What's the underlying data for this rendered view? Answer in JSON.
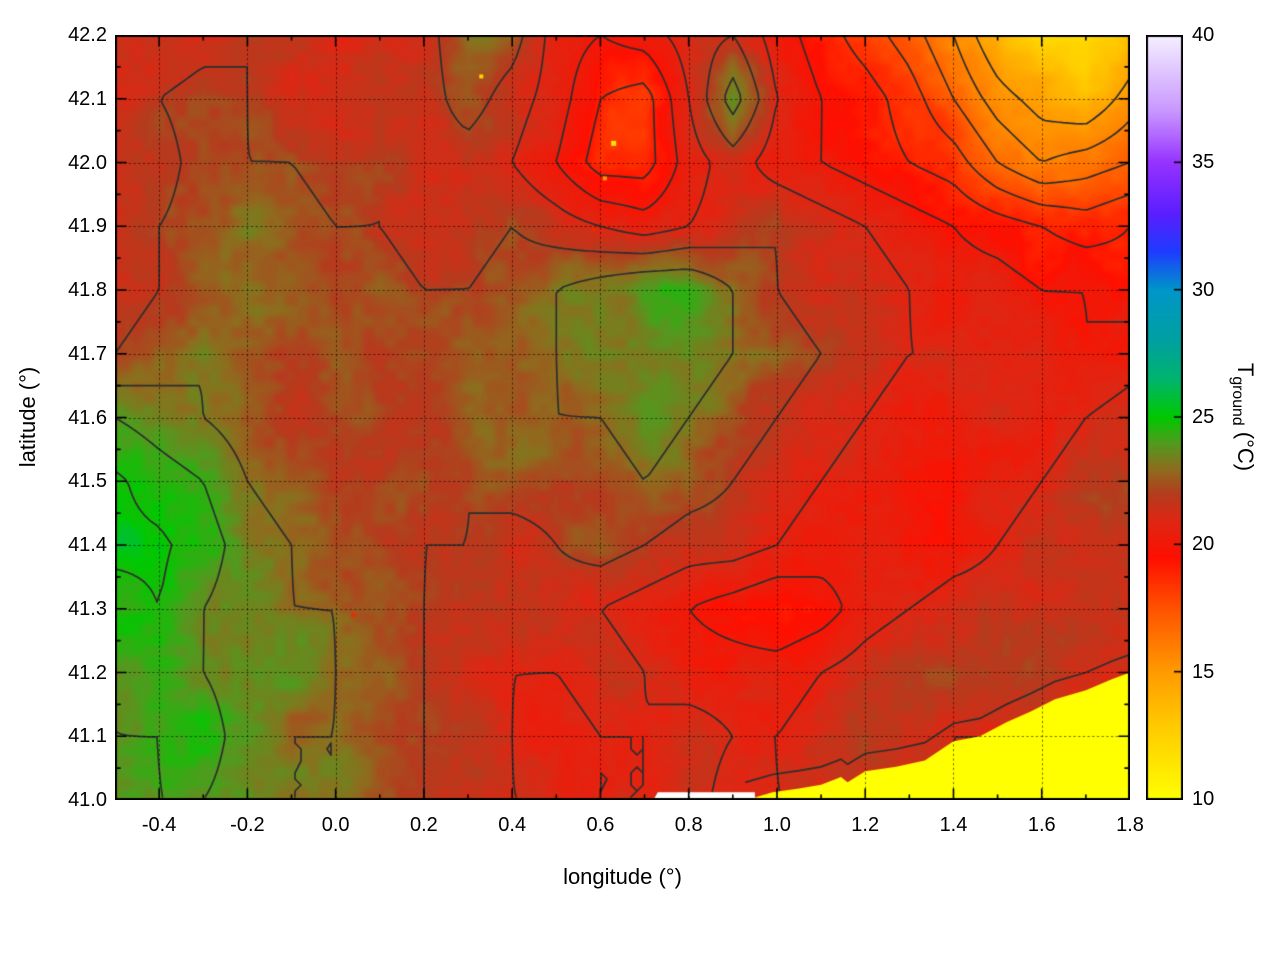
{
  "figure": {
    "xlabel": "longitude (°)",
    "ylabel": "latitude (°)",
    "cb_t": "T",
    "cb_sub": "ground",
    "cb_unit": " (°C)"
  },
  "chart_data": {
    "type": "heatmap",
    "title": "",
    "xlabel": "longitude (°)",
    "ylabel": "latitude (°)",
    "colorbar_label": "T_ground (°C)",
    "xlim": [
      -0.5,
      1.8
    ],
    "ylim": [
      41.0,
      42.2
    ],
    "zlim": [
      10,
      40
    ],
    "grid": true,
    "legend_position": "right-colorbar",
    "x_tick_values": [
      -0.4,
      -0.2,
      0.0,
      0.2,
      0.4,
      0.6,
      0.8,
      1.0,
      1.2,
      1.4,
      1.6,
      1.8
    ],
    "x_tick_labels": [
      "-0.4",
      "-0.2",
      "0.0",
      "0.2",
      "0.4",
      "0.6",
      "0.8",
      "1.0",
      "1.2",
      "1.4",
      "1.6",
      "1.8"
    ],
    "x_minor_step": 0.1,
    "y_tick_values": [
      41.0,
      41.1,
      41.2,
      41.3,
      41.4,
      41.5,
      41.6,
      41.7,
      41.8,
      41.9,
      42.0,
      42.1,
      42.2
    ],
    "y_tick_labels": [
      "41.0",
      "41.1",
      "41.2",
      "41.3",
      "41.4",
      "41.5",
      "41.6",
      "41.7",
      "41.8",
      "41.9",
      "42.0",
      "42.1",
      "42.2"
    ],
    "y_minor_step": 0.05,
    "colorbar": {
      "tick_values": [
        10,
        15,
        20,
        25,
        30,
        35,
        40
      ],
      "tick_labels": [
        "10",
        "15",
        "20",
        "25",
        "30",
        "35",
        "40"
      ],
      "stops": [
        [
          10,
          "#ffff00"
        ],
        [
          13,
          "#ffc800"
        ],
        [
          15,
          "#ff9b00"
        ],
        [
          17.5,
          "#ff5200"
        ],
        [
          19.5,
          "#ff0f00"
        ],
        [
          21,
          "#dc2814"
        ],
        [
          22,
          "#b43c1e"
        ],
        [
          23,
          "#8c6e1e"
        ],
        [
          24,
          "#509b1e"
        ],
        [
          25,
          "#00c800"
        ],
        [
          26.5,
          "#00b46e"
        ],
        [
          28,
          "#00a0a0"
        ],
        [
          30,
          "#0096c8"
        ],
        [
          31.5,
          "#1e3cff"
        ],
        [
          33,
          "#5a1eff"
        ],
        [
          35,
          "#9632ff"
        ],
        [
          37,
          "#c896ff"
        ],
        [
          40,
          "#f5f0ff"
        ]
      ]
    },
    "contour_levels": [
      15,
      16,
      17,
      18,
      19,
      20,
      21,
      22,
      23,
      24,
      25
    ],
    "contour_color": "#2e2e2e",
    "lon": [
      -0.5,
      -0.4,
      -0.3,
      -0.2,
      -0.1,
      0.0,
      0.1,
      0.2,
      0.3,
      0.4,
      0.5,
      0.6,
      0.7,
      0.8,
      0.9,
      1.0,
      1.1,
      1.2,
      1.3,
      1.4,
      1.5,
      1.6,
      1.7,
      1.8
    ],
    "lat": [
      42.2,
      42.1,
      42.0,
      41.9,
      41.8,
      41.7,
      41.6,
      41.5,
      41.4,
      41.3,
      41.2,
      41.1,
      41.0
    ],
    "temperature": [
      [
        21.5,
        21.0,
        21.5,
        22.0,
        21.5,
        21.0,
        21.5,
        21.5,
        23.0,
        22.5,
        20.5,
        20.0,
        20.5,
        21.5,
        22.0,
        20.5,
        19.5,
        18.5,
        17.5,
        16.0,
        14.0,
        12.5,
        12.0,
        14.0
      ],
      [
        21.0,
        22.0,
        22.5,
        22.0,
        21.5,
        21.5,
        22.0,
        21.5,
        22.5,
        21.5,
        20.5,
        19.0,
        18.5,
        21.0,
        23.5,
        21.0,
        20.0,
        19.5,
        18.5,
        17.0,
        15.5,
        14.5,
        14.0,
        15.5
      ],
      [
        21.5,
        21.5,
        22.5,
        22.0,
        22.0,
        21.5,
        22.0,
        21.5,
        21.5,
        21.0,
        20.0,
        18.5,
        18.5,
        20.5,
        21.5,
        20.5,
        20.0,
        19.5,
        19.0,
        18.5,
        17.0,
        16.0,
        16.5,
        17.0
      ],
      [
        21.5,
        22.0,
        22.5,
        23.0,
        22.5,
        22.0,
        22.0,
        21.5,
        21.5,
        22.0,
        21.5,
        21.0,
        20.5,
        21.0,
        21.5,
        22.0,
        21.5,
        21.0,
        20.5,
        20.0,
        19.5,
        19.0,
        18.5,
        19.0
      ],
      [
        21.5,
        22.0,
        22.5,
        23.0,
        22.5,
        22.0,
        22.5,
        22.0,
        22.0,
        22.5,
        23.0,
        23.5,
        24.0,
        24.0,
        23.0,
        22.0,
        21.5,
        21.5,
        21.0,
        20.5,
        20.5,
        20.0,
        20.0,
        19.5
      ],
      [
        22.0,
        22.5,
        23.0,
        22.5,
        22.0,
        22.5,
        22.0,
        22.5,
        23.0,
        22.5,
        23.0,
        23.5,
        23.5,
        23.5,
        23.0,
        22.5,
        22.0,
        21.5,
        21.0,
        21.0,
        20.5,
        20.5,
        20.0,
        20.5
      ],
      [
        24.0,
        23.5,
        23.0,
        22.5,
        22.0,
        22.0,
        22.5,
        22.0,
        22.5,
        22.5,
        23.0,
        23.0,
        23.5,
        23.0,
        22.5,
        22.0,
        21.5,
        21.0,
        20.5,
        20.5,
        21.0,
        20.5,
        21.0,
        21.5
      ],
      [
        25.2,
        24.5,
        24.0,
        23.0,
        22.5,
        22.0,
        22.0,
        22.5,
        22.0,
        22.5,
        22.5,
        22.5,
        23.0,
        22.5,
        22.0,
        21.5,
        21.0,
        20.5,
        20.0,
        20.0,
        20.5,
        21.0,
        21.5,
        22.0
      ],
      [
        25.3,
        25.2,
        24.5,
        23.5,
        23.0,
        22.5,
        22.5,
        22.0,
        22.0,
        21.5,
        22.0,
        22.5,
        22.0,
        21.5,
        21.5,
        21.0,
        20.5,
        20.5,
        20.0,
        20.5,
        21.0,
        21.5,
        22.0,
        22.0
      ],
      [
        24.5,
        25.0,
        24.0,
        23.5,
        23.0,
        23.0,
        22.5,
        22.0,
        21.5,
        21.5,
        21.5,
        21.0,
        20.5,
        20.0,
        19.5,
        19.0,
        19.5,
        20.5,
        21.0,
        21.5,
        21.5,
        21.5,
        21.5,
        22.0
      ],
      [
        24.0,
        24.5,
        24.0,
        23.5,
        23.5,
        23.0,
        22.5,
        22.0,
        21.5,
        21.0,
        21.0,
        21.5,
        21.0,
        20.5,
        20.5,
        20.5,
        21.0,
        21.5,
        22.0,
        22.0,
        22.0,
        22.0,
        21.5,
        21.0
      ],
      [
        24.0,
        24.0,
        24.5,
        23.5,
        23.0,
        23.0,
        22.5,
        22.0,
        21.5,
        21.0,
        20.5,
        21.0,
        21.0,
        21.5,
        21.0,
        21.0,
        21.5,
        22.0,
        21.5,
        21.0,
        21.0,
        21.0,
        21.0,
        21.0
      ],
      [
        23.5,
        24.0,
        24.0,
        23.5,
        23.0,
        23.0,
        22.5,
        22.0,
        21.5,
        21.0,
        21.0,
        21.0,
        21.0,
        21.5,
        20.5,
        21.0,
        21.0,
        21.0,
        21.0,
        21.0,
        21.0,
        21.0,
        21.0,
        21.0
      ]
    ],
    "sea": {
      "color": "#ffff00",
      "boundary": [
        [
          0.93,
          41.0
        ],
        [
          0.99,
          41.012
        ],
        [
          1.05,
          41.018
        ],
        [
          1.1,
          41.024
        ],
        [
          1.145,
          41.036
        ],
        [
          1.16,
          41.028
        ],
        [
          1.2,
          41.045
        ],
        [
          1.27,
          41.052
        ],
        [
          1.335,
          41.062
        ],
        [
          1.4,
          41.092
        ],
        [
          1.46,
          41.1
        ],
        [
          1.52,
          41.122
        ],
        [
          1.575,
          41.139
        ],
        [
          1.63,
          41.158
        ],
        [
          1.7,
          41.172
        ],
        [
          1.76,
          41.19
        ],
        [
          1.8,
          41.2
        ]
      ],
      "coast_contour_offset": 0.028
    },
    "nodata_strip": {
      "color": "#ffffff",
      "polygon": [
        [
          0.72,
          41.0
        ],
        [
          0.95,
          41.0
        ],
        [
          0.95,
          41.012
        ],
        [
          0.73,
          41.012
        ]
      ]
    },
    "spots": [
      {
        "lon": 0.33,
        "lat": 42.135,
        "color": "#ffd700",
        "size": 4
      },
      {
        "lon": 0.63,
        "lat": 42.03,
        "color": "#ffe700",
        "size": 5
      },
      {
        "lon": 0.61,
        "lat": 41.975,
        "color": "#ff9d00",
        "size": 4
      },
      {
        "lon": 0.585,
        "lat": 41.895,
        "color": "#e03000",
        "size": 4
      },
      {
        "lon": 0.04,
        "lat": 41.29,
        "color": "#ee2a00",
        "size": 4
      }
    ]
  }
}
